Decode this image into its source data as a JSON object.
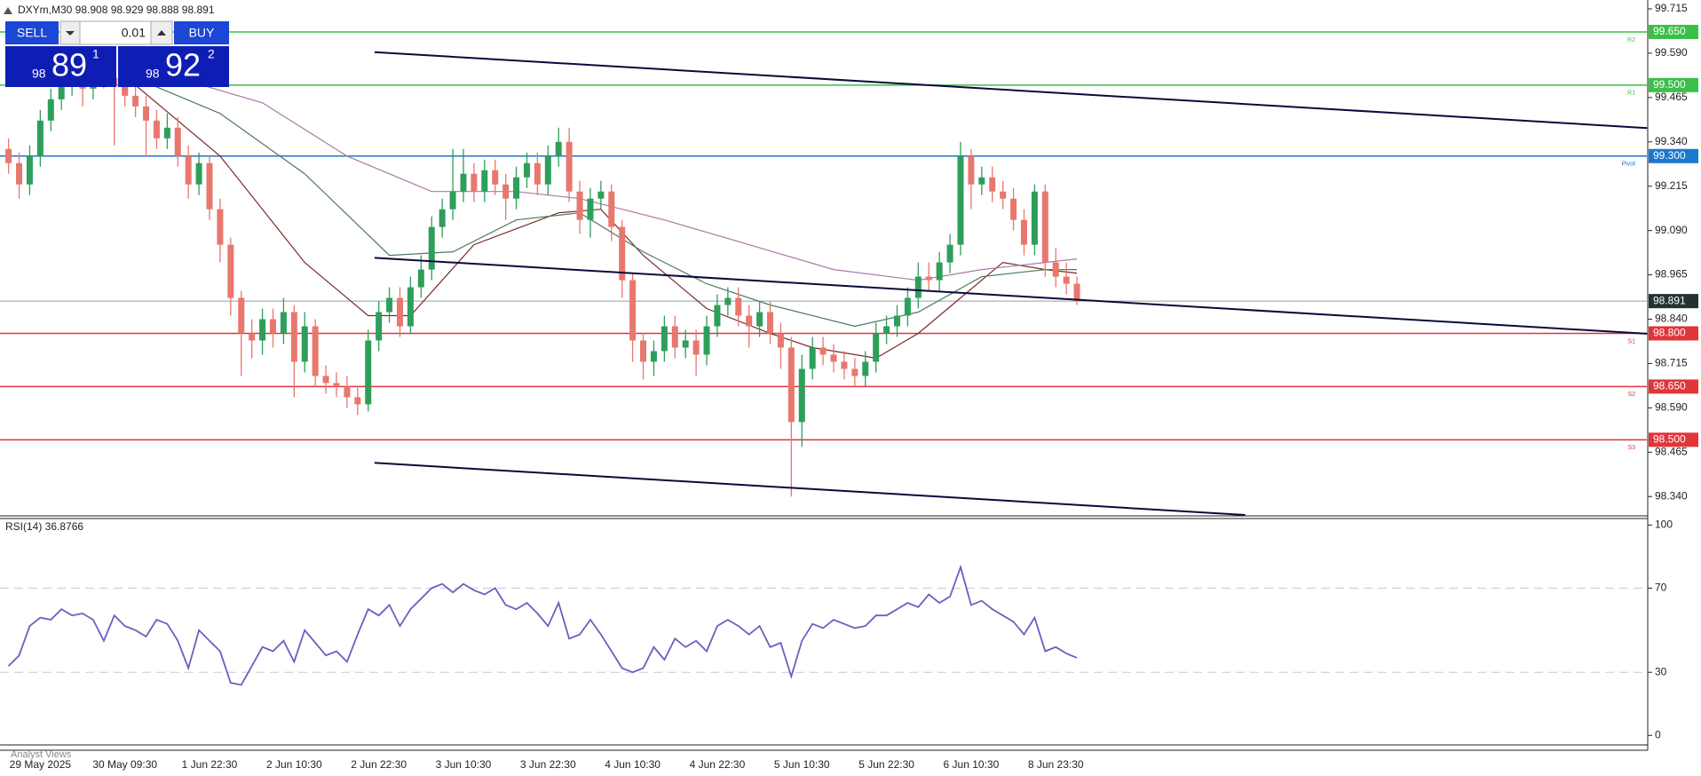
{
  "header": {
    "symbol_info": "DXYm,M30  98.908 98.929 98.888 98.891"
  },
  "trade_panel": {
    "sell": "SELL",
    "buy": "BUY",
    "lot": "0.01",
    "sell_price": [
      "98",
      "89",
      "1"
    ],
    "buy_price": [
      "98",
      "92",
      "2"
    ]
  },
  "footer": "Analyst Views",
  "chart_data": [
    {
      "type": "candlestick",
      "categories": [
        null,
        null,
        null,
        "29 May 2025",
        null,
        null,
        null,
        null,
        null,
        null,
        null,
        "30 May 09:30",
        null,
        null,
        null,
        null,
        null,
        null,
        null,
        "1 Jun 22:30",
        null,
        null,
        null,
        null,
        null,
        null,
        null,
        "2 Jun 10:30",
        null,
        null,
        null,
        null,
        null,
        null,
        null,
        "2 Jun 22:30",
        null,
        null,
        null,
        null,
        null,
        null,
        null,
        "3 Jun 10:30",
        null,
        null,
        null,
        null,
        null,
        null,
        null,
        "3 Jun 22:30",
        null,
        null,
        null,
        null,
        null,
        null,
        null,
        "4 Jun 10:30",
        null,
        null,
        null,
        null,
        null,
        null,
        null,
        "4 Jun 22:30",
        null,
        null,
        null,
        null,
        null,
        null,
        null,
        "5 Jun 10:30",
        null,
        null,
        null,
        null,
        null,
        null,
        null,
        "5 Jun 22:30",
        null,
        null,
        null,
        null,
        null,
        null,
        null,
        "6 Jun 10:30",
        null,
        null,
        null,
        null,
        null,
        null,
        null,
        "8 Jun 23:30",
        null,
        null
      ],
      "open": [
        99.32,
        99.28,
        99.22,
        99.3,
        99.4,
        99.46,
        99.5,
        99.52,
        99.49,
        99.54,
        99.52,
        99.5,
        99.47,
        99.44,
        99.4,
        99.35,
        99.38,
        99.3,
        99.22,
        99.28,
        99.15,
        99.05,
        98.9,
        98.8,
        98.78,
        98.84,
        98.8,
        98.86,
        98.72,
        98.82,
        98.68,
        98.66,
        98.65,
        98.62,
        98.6,
        98.78,
        98.86,
        98.9,
        98.82,
        98.93,
        98.98,
        99.1,
        99.15,
        99.2,
        99.25,
        99.2,
        99.26,
        99.22,
        99.18,
        99.24,
        99.28,
        99.22,
        99.3,
        99.34,
        99.2,
        99.12,
        99.18,
        99.2,
        99.1,
        98.95,
        98.78,
        98.72,
        98.75,
        98.82,
        98.76,
        98.78,
        98.74,
        98.82,
        98.88,
        98.9,
        98.85,
        98.82,
        98.86,
        98.8,
        98.76,
        98.55,
        98.7,
        98.76,
        98.74,
        98.72,
        98.7,
        98.68,
        98.72,
        98.8,
        98.82,
        98.85,
        98.9,
        98.96,
        98.95,
        99.0,
        99.05,
        99.3,
        99.22,
        99.24,
        99.2,
        99.18,
        99.12,
        99.05,
        99.2,
        99.0,
        98.96,
        98.94
      ],
      "high": [
        99.35,
        99.31,
        99.33,
        99.43,
        99.49,
        99.53,
        99.55,
        99.55,
        99.57,
        99.57,
        99.55,
        99.53,
        99.5,
        99.47,
        99.43,
        99.42,
        99.41,
        99.33,
        99.31,
        99.3,
        99.18,
        99.07,
        98.92,
        98.84,
        98.87,
        98.87,
        98.9,
        98.88,
        98.86,
        98.84,
        98.71,
        98.69,
        98.68,
        98.65,
        98.81,
        98.89,
        98.93,
        98.93,
        98.96,
        99.02,
        99.13,
        99.18,
        99.32,
        99.32,
        99.28,
        99.29,
        99.29,
        99.25,
        99.27,
        99.31,
        99.31,
        99.33,
        99.38,
        99.38,
        99.23,
        99.21,
        99.23,
        99.22,
        99.12,
        98.97,
        98.8,
        98.78,
        98.85,
        98.85,
        98.81,
        98.81,
        98.85,
        98.91,
        98.93,
        98.93,
        98.88,
        98.89,
        98.89,
        98.83,
        98.79,
        98.74,
        98.79,
        98.79,
        98.77,
        98.75,
        98.73,
        98.75,
        98.83,
        98.85,
        98.88,
        98.93,
        99.0,
        99.0,
        99.03,
        99.08,
        99.34,
        99.32,
        99.27,
        99.27,
        99.23,
        99.21,
        99.15,
        99.22,
        99.22,
        99.04,
        99.0,
        98.96
      ],
      "low": [
        99.25,
        99.18,
        99.19,
        99.27,
        99.37,
        99.43,
        99.47,
        99.44,
        99.46,
        99.49,
        99.33,
        99.44,
        99.41,
        99.3,
        99.32,
        99.32,
        99.27,
        99.18,
        99.19,
        99.12,
        99.0,
        98.85,
        98.68,
        98.73,
        98.74,
        98.76,
        98.77,
        98.62,
        98.69,
        98.65,
        98.63,
        98.62,
        98.59,
        98.57,
        98.58,
        98.75,
        98.83,
        98.79,
        98.8,
        98.9,
        98.95,
        99.07,
        99.12,
        99.17,
        99.17,
        99.17,
        99.19,
        99.12,
        99.15,
        99.21,
        99.19,
        99.19,
        99.27,
        99.17,
        99.08,
        99.07,
        99.15,
        99.06,
        98.9,
        98.72,
        98.67,
        98.68,
        98.72,
        98.73,
        98.73,
        98.68,
        98.71,
        98.79,
        98.85,
        98.82,
        98.76,
        98.79,
        98.77,
        98.7,
        98.34,
        98.48,
        98.67,
        98.71,
        98.69,
        98.67,
        98.65,
        98.65,
        98.69,
        98.77,
        98.79,
        98.82,
        98.87,
        98.92,
        98.92,
        98.97,
        99.02,
        99.15,
        99.19,
        99.17,
        99.15,
        99.09,
        99.02,
        99.02,
        98.96,
        98.93,
        98.91,
        98.88
      ],
      "close": [
        99.28,
        99.22,
        99.3,
        99.4,
        99.46,
        99.5,
        99.52,
        99.49,
        99.54,
        99.52,
        99.5,
        99.47,
        99.44,
        99.4,
        99.35,
        99.38,
        99.3,
        99.22,
        99.28,
        99.15,
        99.05,
        98.9,
        98.8,
        98.78,
        98.84,
        98.8,
        98.86,
        98.72,
        98.82,
        98.68,
        98.66,
        98.65,
        98.62,
        98.6,
        98.78,
        98.86,
        98.9,
        98.82,
        98.93,
        98.98,
        99.1,
        99.15,
        99.2,
        99.25,
        99.2,
        99.26,
        99.22,
        99.18,
        99.24,
        99.28,
        99.22,
        99.3,
        99.34,
        99.2,
        99.12,
        99.18,
        99.2,
        99.1,
        98.95,
        98.78,
        98.72,
        98.75,
        98.82,
        98.76,
        98.78,
        98.74,
        98.82,
        98.88,
        98.9,
        98.85,
        98.82,
        98.86,
        98.8,
        98.76,
        98.55,
        98.7,
        98.76,
        98.74,
        98.72,
        98.7,
        98.68,
        98.72,
        98.8,
        98.82,
        98.85,
        98.9,
        98.96,
        98.95,
        99.0,
        99.05,
        99.3,
        99.22,
        99.24,
        99.2,
        99.18,
        99.12,
        99.05,
        99.2,
        99.0,
        98.96,
        98.94,
        98.89
      ],
      "up_color": "#2e9e5b",
      "down_color": "#e8776d",
      "ylim": [
        98.288,
        99.74
      ],
      "yticks": [
        99.715,
        {
          "value": 99.59,
          "label": "99.590"
        },
        99.465,
        {
          "value": 99.34,
          "label": "99.340"
        },
        99.215,
        {
          "value": 99.09,
          "label": "99.090"
        },
        98.965,
        {
          "value": 98.84,
          "label": "98.840"
        },
        98.715,
        {
          "value": 98.59,
          "label": "98.590"
        },
        98.465,
        {
          "value": 98.34,
          "label": "98.340"
        }
      ],
      "moving_averages": [
        {
          "color": "#7a2a2a",
          "x": [
            12,
            20,
            28,
            34,
            38,
            44,
            52,
            56,
            60,
            66,
            72,
            76,
            82,
            86,
            90,
            94,
            98,
            101
          ],
          "values": [
            99.5,
            99.3,
            99.0,
            98.85,
            98.85,
            99.05,
            99.14,
            99.15,
            99.02,
            98.87,
            98.8,
            98.76,
            98.73,
            98.8,
            98.9,
            99.0,
            98.98,
            98.97
          ]
        },
        {
          "color": "#4e7a5e",
          "x": [
            12,
            20,
            28,
            36,
            42,
            48,
            54,
            60,
            66,
            72,
            80,
            86,
            92,
            98,
            101
          ],
          "values": [
            99.52,
            99.42,
            99.25,
            99.02,
            99.03,
            99.12,
            99.14,
            99.03,
            98.94,
            98.88,
            98.82,
            98.86,
            98.96,
            98.98,
            98.98
          ]
        },
        {
          "color": "#a77aa6",
          "x": [
            16,
            24,
            32,
            40,
            48,
            54,
            62,
            70,
            78,
            86,
            92,
            98,
            101
          ],
          "values": [
            99.52,
            99.45,
            99.3,
            99.2,
            99.2,
            99.18,
            99.12,
            99.05,
            98.98,
            98.95,
            98.98,
            99.0,
            99.01
          ]
        }
      ],
      "trendlines": [
        {
          "color": "#0a0a3a",
          "x": [
            34.6,
            154.9
          ],
          "values": [
            99.593,
            99.379
          ]
        },
        {
          "color": "#0a0a3a",
          "x": [
            34.6,
            154.9
          ],
          "values": [
            99.013,
            98.799
          ]
        },
        {
          "color": "#0a0a3a",
          "x": [
            34.6,
            116.9
          ],
          "values": [
            98.435,
            98.288
          ]
        }
      ],
      "levels": [
        {
          "value": 99.65,
          "label": "99.650",
          "color": "#3cbf4a",
          "tag": "R2"
        },
        {
          "value": 99.5,
          "label": "99.500",
          "color": "#3cbf4a",
          "tag": "R1"
        },
        {
          "value": 99.3,
          "label": "99.300",
          "color": "#1a78d0",
          "tag": "Pivot"
        },
        {
          "value": 98.8,
          "label": "98.800",
          "color": "#e0353b",
          "tag": "S1"
        },
        {
          "value": 98.65,
          "label": "98.650",
          "color": "#e0353b",
          "tag": "S2"
        },
        {
          "value": 98.5,
          "label": "98.500",
          "color": "#e0353b",
          "tag": "S3"
        }
      ],
      "current": {
        "value": 98.891,
        "color": "#8fa3a3",
        "box_color": "#233232"
      }
    },
    {
      "type": "line",
      "title": "RSI(14) 36.8766",
      "color": "#6b5fbf",
      "values": [
        33,
        38,
        52,
        56,
        55,
        60,
        57,
        58,
        55,
        45,
        57,
        52,
        50,
        47,
        55,
        53,
        45,
        32,
        50,
        45,
        40,
        25,
        24,
        33,
        42,
        40,
        45,
        35,
        50,
        44,
        38,
        40,
        35,
        48,
        60,
        57,
        62,
        52,
        60,
        65,
        70,
        72,
        68,
        72,
        69,
        67,
        70,
        62,
        60,
        63,
        58,
        52,
        63,
        46,
        48,
        55,
        48,
        40,
        32,
        30,
        32,
        42,
        36,
        46,
        42,
        45,
        40,
        52,
        55,
        52,
        48,
        52,
        42,
        44,
        28,
        45,
        53,
        51,
        55,
        53,
        51,
        52,
        57,
        57,
        60,
        63,
        61,
        67,
        63,
        66,
        80,
        62,
        64,
        60,
        57,
        54,
        48,
        56,
        40,
        42,
        39,
        36.8766
      ],
      "ylim": [
        -4.1,
        103.1
      ],
      "yticks": [
        0,
        30,
        70,
        100
      ],
      "levels": [
        30,
        70
      ]
    }
  ]
}
